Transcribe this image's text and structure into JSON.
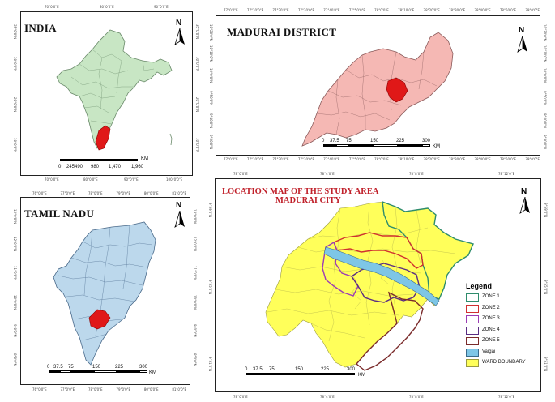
{
  "colors": {
    "india_fill": "#c8e6c4",
    "district_fill": "#f5b8b4",
    "tamilnadu_fill": "#bcd8ec",
    "highlight": "#e01818",
    "ward_fill": "#ffff5a",
    "vaigai": "#7ec6e6",
    "zone1": "#2e8c6c",
    "zone2": "#d03030",
    "zone3": "#9c3cb4",
    "zone4": "#5a2c82",
    "zone5": "#7a2a2a"
  },
  "india": {
    "title": "INDIA",
    "north_label": "N",
    "top_ticks": [
      "70°0'0\"E",
      "80°0'0\"E",
      "90°0'0\"E"
    ],
    "bottom_ticks": [
      "70°0'0\"E",
      "80°0'0\"E",
      "90°0'0\"E",
      "100°0'0\"E"
    ],
    "left_ticks": [
      "35°0'0\"N",
      "30°0'0\"N",
      "20°0'0\"N",
      "10°0'0\"N"
    ],
    "right_ticks": [
      "35°0'0\"N",
      "30°0'0\"N",
      "20°0'0\"N",
      "10°0'0\"N"
    ],
    "scale_labels": [
      "0",
      "245490",
      "980",
      "1,470",
      "1,960"
    ],
    "scale_unit": "KM"
  },
  "district": {
    "title": "MADURAI DISTRICT",
    "north_label": "N",
    "top_ticks": [
      "77°0'0\"E",
      "77°10'0\"E",
      "77°20'0\"E",
      "77°30'0\"E",
      "77°40'0\"E",
      "77°50'0\"E",
      "78°0'0\"E",
      "78°10'0\"E",
      "78°20'0\"E",
      "78°30'0\"E",
      "78°40'0\"E",
      "78°50'0\"E",
      "79°0'0\"E"
    ],
    "bottom_ticks": [
      "77°0'0\"E",
      "77°10'0\"E",
      "77°20'0\"E",
      "77°30'0\"E",
      "77°40'0\"E",
      "77°50'0\"E",
      "78°0'0\"E",
      "78°10'0\"E",
      "78°20'0\"E",
      "78°30'0\"E",
      "78°40'0\"E",
      "78°50'0\"E",
      "79°0'0\"E"
    ],
    "left_ticks": [
      "10°20'0\"N",
      "10°10'0\"N",
      "10°0'0\"N",
      "9°50'0\"N",
      "9°40'0\"N",
      "9°30'0\"N"
    ],
    "right_ticks": [
      "10°20'0\"N",
      "10°10'0\"N",
      "10°0'0\"N",
      "9°50'0\"N",
      "9°40'0\"N",
      "9°30'0\"N"
    ],
    "scale_labels": [
      "0",
      "37.5",
      "75",
      "150",
      "225",
      "300"
    ],
    "scale_unit": "KM"
  },
  "tamilnadu": {
    "title": "TAMIL NADU",
    "north_label": "N",
    "top_ticks": [
      "76°0'0\"E",
      "77°0'0\"E",
      "78°0'0\"E",
      "79°0'0\"E",
      "80°0'0\"E",
      "81°0'0\"E"
    ],
    "bottom_ticks": [
      "76°0'0\"E",
      "77°0'0\"E",
      "78°0'0\"E",
      "79°0'0\"E",
      "80°0'0\"E",
      "81°0'0\"E"
    ],
    "left_ticks": [
      "13°0'0\"N",
      "12°0'0\"N",
      "11°0'0\"N",
      "10°0'0\"N",
      "9°0'0\"N",
      "8°0'0\"N"
    ],
    "right_ticks": [
      "13°0'0\"N",
      "12°0'0\"N",
      "11°0'0\"N",
      "10°0'0\"N",
      "9°0'0\"N",
      "8°0'0\"N"
    ],
    "scale_labels": [
      "0",
      "37.5",
      "75",
      "150",
      "225",
      "300"
    ],
    "scale_unit": "KM"
  },
  "city": {
    "title_line1": "LOCATION MAP OF THE STUDY AREA",
    "title_line2": "MADURAI CITY",
    "north_label": "N",
    "top_ticks": [
      "78°0'0\"E",
      "78°4'0\"E",
      "78°8'0\"E",
      "78°12'0\"E"
    ],
    "bottom_ticks": [
      "78°0'0\"E",
      "78°4'0\"E",
      "78°8'0\"E",
      "78°12'0\"E"
    ],
    "left_ticks": [
      "9°59'0\"N",
      "9°55'0\"N",
      "9°51'0\"N"
    ],
    "right_ticks": [
      "9°59'0\"N",
      "9°55'0\"N",
      "9°51'0\"N"
    ],
    "scale_labels": [
      "0",
      "37.5",
      "75",
      "150",
      "225",
      "300"
    ],
    "scale_unit": "KM",
    "legend": {
      "title": "Legend",
      "items": [
        {
          "label": "ZONE 1",
          "icon": "outline-swatch",
          "color": "#2e8c6c"
        },
        {
          "label": "ZONE 2",
          "icon": "outline-swatch",
          "color": "#d03030"
        },
        {
          "label": "ZONE 3",
          "icon": "outline-swatch",
          "color": "#9c3cb4"
        },
        {
          "label": "ZONE 4",
          "icon": "outline-swatch",
          "color": "#5a2c82"
        },
        {
          "label": "ZONE 5",
          "icon": "outline-swatch",
          "color": "#7a2a2a"
        },
        {
          "label": "Vaigai",
          "icon": "fill-swatch",
          "color": "#7ec6e6"
        },
        {
          "label": "WARD BOUNDARY",
          "icon": "fill-swatch",
          "color": "#ffff5a"
        }
      ]
    }
  }
}
